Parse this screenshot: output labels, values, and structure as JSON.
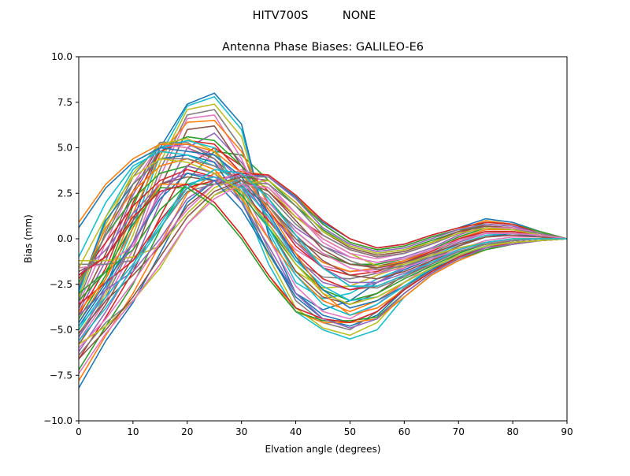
{
  "suptitle": {
    "left": "HITV700S",
    "right": "NONE"
  },
  "chart_data": {
    "type": "line",
    "title": "Antenna Phase Biases: GALILEO-E6",
    "xlabel": "Elvation angle (degrees)",
    "ylabel": "Bias (mm)",
    "xlim": [
      0,
      90
    ],
    "ylim": [
      -10,
      10
    ],
    "xticks": [
      0,
      10,
      20,
      30,
      40,
      50,
      60,
      70,
      80,
      90
    ],
    "xtick_labels": [
      "0",
      "10",
      "20",
      "30",
      "40",
      "50",
      "60",
      "70",
      "80",
      "90"
    ],
    "yticks": [
      -10,
      -7.5,
      -5,
      -2.5,
      0,
      2.5,
      5,
      7.5,
      10
    ],
    "ytick_labels": [
      "−10.0",
      "−7.5",
      "−5.0",
      "−2.5",
      "0.0",
      "2.5",
      "5.0",
      "7.5",
      "10.0"
    ],
    "grid": false,
    "x": [
      0,
      5,
      10,
      15,
      20,
      25,
      30,
      35,
      40,
      45,
      50,
      55,
      60,
      65,
      70,
      75,
      80,
      85,
      90
    ],
    "series_colors": [
      "#1f77b4",
      "#ff7f0e",
      "#2ca02c",
      "#d62728",
      "#9467bd",
      "#8c564b",
      "#e377c2",
      "#7f7f7f",
      "#bcbd22",
      "#17becf"
    ],
    "series": [
      {
        "values": [
          -8.2,
          -5.6,
          -3.5,
          -0.8,
          2.0,
          3.2,
          3.6,
          3.4,
          2.3,
          0.9,
          0.0,
          -0.5,
          -0.3,
          0.2,
          0.6,
          1.1,
          0.9,
          0.4,
          0.0
        ]
      },
      {
        "values": [
          -7.8,
          -5.3,
          -3.0,
          -0.3,
          2.5,
          3.6,
          3.7,
          3.5,
          2.4,
          0.8,
          -0.2,
          -0.6,
          -0.4,
          0.1,
          0.5,
          1.0,
          0.8,
          0.4,
          0.0
        ]
      },
      {
        "values": [
          -7.2,
          -4.8,
          -2.5,
          0.5,
          3.2,
          4.8,
          4.6,
          3.2,
          1.8,
          0.5,
          -0.4,
          -0.8,
          -0.6,
          -0.1,
          0.4,
          0.9,
          0.8,
          0.4,
          0.0
        ]
      },
      {
        "values": [
          -6.6,
          -4.3,
          -1.8,
          1.2,
          4.0,
          5.0,
          4.0,
          2.6,
          1.2,
          0.2,
          -0.6,
          -1.0,
          -0.8,
          -0.3,
          0.3,
          0.8,
          0.7,
          0.3,
          0.0
        ]
      },
      {
        "values": [
          -6.2,
          -4.0,
          -1.5,
          2.0,
          5.0,
          5.8,
          4.2,
          2.0,
          0.6,
          -0.4,
          -1.0,
          -1.3,
          -1.0,
          -0.5,
          0.2,
          0.7,
          0.6,
          0.3,
          0.0
        ]
      },
      {
        "values": [
          -5.8,
          -3.6,
          -1.0,
          2.8,
          6.0,
          6.2,
          4.0,
          1.4,
          0.0,
          -0.9,
          -1.4,
          -1.5,
          -1.2,
          -0.6,
          0.1,
          0.6,
          0.5,
          0.3,
          0.0
        ]
      },
      {
        "values": [
          -5.6,
          -3.4,
          -0.6,
          3.4,
          6.6,
          6.8,
          4.4,
          1.0,
          -0.6,
          -1.5,
          -1.8,
          -1.7,
          -1.3,
          -0.7,
          0.0,
          0.5,
          0.5,
          0.2,
          0.0
        ]
      },
      {
        "values": [
          -5.4,
          -3.2,
          -0.2,
          3.8,
          6.8,
          7.1,
          5.0,
          0.8,
          -1.2,
          -2.1,
          -2.2,
          -1.9,
          -1.4,
          -0.8,
          -0.1,
          0.4,
          0.4,
          0.2,
          0.0
        ]
      },
      {
        "values": [
          -5.2,
          -3.0,
          0.2,
          4.2,
          7.1,
          7.4,
          5.6,
          0.6,
          -1.8,
          -2.7,
          -2.6,
          -2.0,
          -1.5,
          -0.9,
          -0.2,
          0.3,
          0.4,
          0.2,
          0.0
        ]
      },
      {
        "values": [
          -5.0,
          -2.8,
          0.6,
          4.6,
          7.3,
          7.8,
          6.0,
          0.4,
          -2.4,
          -3.3,
          -3.0,
          -2.2,
          -1.6,
          -1.0,
          -0.3,
          0.2,
          0.3,
          0.2,
          0.0
        ]
      },
      {
        "values": [
          -4.8,
          -2.6,
          1.0,
          5.0,
          7.4,
          8.0,
          6.3,
          0.2,
          -3.0,
          -3.9,
          -3.4,
          -2.4,
          -1.7,
          -1.1,
          -0.4,
          0.1,
          0.3,
          0.1,
          0.0
        ]
      },
      {
        "values": [
          -4.6,
          -2.2,
          1.4,
          4.6,
          6.4,
          6.5,
          4.8,
          1.8,
          -0.2,
          -1.3,
          -1.8,
          -1.6,
          -1.2,
          -0.7,
          0.0,
          0.5,
          0.5,
          0.2,
          0.0
        ]
      },
      {
        "values": [
          -4.4,
          -2.0,
          1.8,
          5.0,
          5.6,
          5.4,
          4.0,
          2.2,
          0.4,
          -0.8,
          -1.4,
          -1.4,
          -1.1,
          -0.6,
          0.1,
          0.6,
          0.5,
          0.3,
          0.0
        ]
      },
      {
        "values": [
          -4.2,
          -1.6,
          2.0,
          4.8,
          5.4,
          5.2,
          3.6,
          1.6,
          -0.4,
          -1.6,
          -2.0,
          -1.8,
          -1.3,
          -0.7,
          0.0,
          0.4,
          0.4,
          0.2,
          0.0
        ]
      },
      {
        "values": [
          -4.0,
          -1.2,
          2.4,
          5.0,
          5.2,
          4.6,
          3.2,
          1.2,
          -1.0,
          -2.4,
          -2.8,
          -2.4,
          -1.6,
          -0.9,
          -0.2,
          0.3,
          0.3,
          0.2,
          0.0
        ]
      },
      {
        "values": [
          -3.8,
          -0.8,
          2.6,
          5.2,
          5.0,
          4.4,
          3.0,
          0.6,
          -1.8,
          -3.2,
          -3.6,
          -3.0,
          -2.0,
          -1.2,
          -0.4,
          0.1,
          0.2,
          0.1,
          0.0
        ]
      },
      {
        "values": [
          -3.6,
          -0.2,
          3.0,
          5.2,
          5.0,
          4.2,
          2.8,
          0.0,
          -2.6,
          -4.0,
          -4.4,
          -3.6,
          -2.4,
          -1.4,
          -0.6,
          -0.1,
          0.1,
          0.1,
          0.0
        ]
      },
      {
        "values": [
          -3.4,
          0.4,
          3.4,
          5.3,
          5.3,
          4.4,
          2.6,
          -0.6,
          -3.4,
          -4.6,
          -5.0,
          -4.0,
          -2.7,
          -1.7,
          -0.8,
          -0.2,
          0.0,
          0.0,
          0.0
        ]
      },
      {
        "values": [
          -3.2,
          0.8,
          3.6,
          5.2,
          5.5,
          4.8,
          2.4,
          -1.0,
          -3.8,
          -4.9,
          -5.3,
          -4.6,
          -3.0,
          -1.9,
          -1.0,
          -0.4,
          -0.1,
          0.0,
          0.0
        ]
      },
      {
        "values": [
          -3.0,
          1.2,
          3.8,
          5.0,
          5.4,
          5.0,
          2.2,
          -1.4,
          -4.0,
          -5.0,
          -5.5,
          -5.0,
          -3.2,
          -2.0,
          -1.2,
          -0.6,
          -0.3,
          -0.1,
          0.0
        ]
      },
      {
        "values": [
          -2.8,
          1.0,
          3.0,
          4.4,
          4.6,
          4.2,
          2.0,
          -0.8,
          -3.0,
          -4.2,
          -4.6,
          -4.0,
          -2.8,
          -1.8,
          -1.0,
          -0.4,
          -0.2,
          -0.1,
          0.0
        ]
      },
      {
        "values": [
          -2.6,
          0.6,
          2.6,
          4.0,
          4.4,
          3.8,
          2.2,
          0.0,
          -2.0,
          -3.4,
          -4.0,
          -3.4,
          -2.4,
          -1.6,
          -0.9,
          -0.4,
          -0.2,
          -0.1,
          0.0
        ]
      },
      {
        "values": [
          -2.4,
          0.2,
          2.2,
          3.6,
          4.0,
          3.6,
          2.4,
          0.6,
          -1.4,
          -2.8,
          -3.4,
          -3.0,
          -2.2,
          -1.5,
          -0.8,
          -0.3,
          -0.1,
          0.0,
          0.0
        ]
      },
      {
        "values": [
          -2.2,
          -0.2,
          1.8,
          3.2,
          3.8,
          3.4,
          2.6,
          1.0,
          -0.8,
          -2.2,
          -2.8,
          -2.6,
          -2.0,
          -1.4,
          -0.7,
          -0.3,
          -0.1,
          0.0,
          0.0
        ]
      },
      {
        "values": [
          -2.0,
          -0.6,
          1.4,
          3.0,
          3.6,
          3.4,
          2.8,
          1.4,
          -0.2,
          -1.6,
          -2.4,
          -2.4,
          -1.9,
          -1.3,
          -0.7,
          -0.3,
          -0.1,
          0.0,
          0.0
        ]
      },
      {
        "values": [
          -1.8,
          -1.0,
          1.0,
          3.0,
          3.4,
          3.2,
          2.9,
          1.8,
          0.2,
          -1.2,
          -2.0,
          -2.2,
          -1.8,
          -1.2,
          -0.6,
          -0.2,
          -0.1,
          0.0,
          0.0
        ]
      },
      {
        "values": [
          -1.6,
          -1.4,
          -0.4,
          2.6,
          3.0,
          3.0,
          3.0,
          2.0,
          0.4,
          -0.8,
          -1.6,
          -1.9,
          -1.6,
          -1.1,
          -0.6,
          -0.2,
          -0.1,
          0.0,
          0.0
        ]
      },
      {
        "values": [
          -1.4,
          -1.4,
          -1.2,
          0.6,
          2.6,
          3.0,
          3.2,
          2.4,
          0.8,
          -0.4,
          -1.2,
          -1.7,
          -1.5,
          -1.0,
          -0.5,
          -0.2,
          0.0,
          0.0,
          0.0
        ]
      },
      {
        "values": [
          -1.2,
          -1.2,
          -1.0,
          -0.4,
          1.4,
          2.8,
          3.4,
          2.8,
          1.2,
          0.0,
          -0.8,
          -1.5,
          -1.4,
          -0.9,
          -0.5,
          -0.2,
          0.0,
          0.0,
          0.0
        ]
      },
      {
        "values": [
          -1.0,
          2.0,
          4.0,
          4.8,
          4.6,
          4.0,
          3.0,
          1.2,
          -1.2,
          -2.6,
          -3.4,
          -3.2,
          -2.4,
          -1.6,
          -0.9,
          -0.4,
          -0.2,
          -0.1,
          0.0
        ]
      },
      {
        "values": [
          0.6,
          2.8,
          4.2,
          5.0,
          4.8,
          4.6,
          3.4,
          1.4,
          -1.0,
          -2.8,
          -3.8,
          -3.4,
          -2.6,
          -1.7,
          -1.0,
          -0.5,
          -0.2,
          -0.1,
          0.0
        ]
      },
      {
        "values": [
          0.9,
          3.0,
          4.4,
          5.2,
          5.2,
          4.8,
          3.6,
          1.6,
          -0.8,
          -3.0,
          -4.2,
          -3.8,
          -2.8,
          -1.8,
          -1.1,
          -0.5,
          -0.3,
          -0.1,
          0.0
        ]
      },
      {
        "values": [
          -3.0,
          -1.8,
          -0.6,
          1.6,
          3.0,
          3.0,
          3.4,
          3.4,
          2.2,
          0.8,
          -0.2,
          -0.6,
          -0.4,
          0.1,
          0.5,
          0.7,
          0.6,
          0.3,
          0.0
        ]
      },
      {
        "values": [
          -3.6,
          -2.4,
          -1.2,
          1.0,
          2.8,
          3.2,
          3.6,
          3.5,
          2.4,
          1.0,
          0.0,
          -0.5,
          -0.3,
          0.2,
          0.6,
          0.9,
          0.8,
          0.3,
          0.0
        ]
      },
      {
        "values": [
          -4.2,
          -2.8,
          -1.8,
          0.0,
          2.2,
          3.2,
          3.5,
          3.4,
          2.2,
          0.6,
          -0.3,
          -0.7,
          -0.5,
          0.0,
          0.5,
          0.8,
          0.7,
          0.3,
          0.0
        ]
      },
      {
        "values": [
          -5.2,
          -3.4,
          -2.0,
          -0.4,
          1.8,
          3.0,
          3.4,
          3.2,
          2.0,
          0.4,
          -0.5,
          -0.9,
          -0.7,
          -0.2,
          0.4,
          0.7,
          0.6,
          0.3,
          0.0
        ]
      },
      {
        "values": [
          -6.0,
          -4.4,
          -2.4,
          -0.2,
          1.6,
          3.0,
          3.8,
          3.0,
          1.4,
          0.0,
          -0.8,
          -1.1,
          -0.8,
          -0.3,
          0.3,
          0.6,
          0.6,
          0.3,
          0.0
        ]
      },
      {
        "values": [
          -6.4,
          -4.6,
          -3.4,
          -1.4,
          0.8,
          2.4,
          3.2,
          3.0,
          1.8,
          0.2,
          -0.6,
          -1.0,
          -0.8,
          -0.3,
          0.3,
          0.6,
          0.5,
          0.3,
          0.0
        ]
      },
      {
        "values": [
          -5.8,
          -4.8,
          -3.4,
          -1.6,
          0.8,
          2.4,
          3.0,
          3.2,
          2.0,
          0.4,
          -0.4,
          -0.8,
          -0.6,
          -0.2,
          0.3,
          0.6,
          0.5,
          0.2,
          0.0
        ]
      },
      {
        "values": [
          -4.8,
          -3.2,
          -1.4,
          0.8,
          3.0,
          3.4,
          2.8,
          0.6,
          -2.0,
          -3.6,
          -4.2,
          -3.6,
          -2.6,
          -1.6,
          -0.9,
          -0.4,
          -0.2,
          -0.1,
          0.0
        ]
      },
      {
        "values": [
          -4.6,
          -2.4,
          -0.2,
          2.2,
          3.6,
          3.2,
          1.6,
          -0.8,
          -3.2,
          -4.4,
          -4.8,
          -4.2,
          -2.8,
          -1.8,
          -1.0,
          -0.5,
          -0.2,
          -0.1,
          0.0
        ]
      },
      {
        "values": [
          -4.0,
          -2.2,
          0.6,
          3.0,
          3.0,
          2.0,
          0.2,
          -2.0,
          -4.0,
          -4.6,
          -4.6,
          -4.4,
          -3.2,
          -2.0,
          -1.2,
          -0.6,
          -0.3,
          -0.1,
          0.0
        ]
      },
      {
        "values": [
          -3.4,
          -1.8,
          0.8,
          2.8,
          2.8,
          1.8,
          0.0,
          -2.2,
          -4.0,
          -4.5,
          -4.5,
          -4.3,
          -3.0,
          -1.9,
          -1.1,
          -0.6,
          -0.3,
          -0.1,
          0.0
        ]
      },
      {
        "values": [
          -2.0,
          -1.0,
          1.2,
          2.6,
          3.0,
          2.0,
          0.2,
          -2.0,
          -3.8,
          -4.4,
          -4.6,
          -4.0,
          -2.8,
          -1.8,
          -1.0,
          -0.5,
          -0.2,
          -0.1,
          0.0
        ]
      },
      {
        "values": [
          -5.4,
          -2.8,
          -0.2,
          2.4,
          4.0,
          3.6,
          2.0,
          -0.4,
          -3.0,
          -4.4,
          -4.9,
          -4.4,
          -3.0,
          -1.9,
          -1.1,
          -0.5,
          -0.3,
          -0.1,
          0.0
        ]
      },
      {
        "values": [
          -6.6,
          -5.0,
          -3.2,
          -1.0,
          1.2,
          2.6,
          3.2,
          2.6,
          1.0,
          -0.6,
          -1.4,
          -1.6,
          -1.3,
          -0.8,
          -0.3,
          0.1,
          0.2,
          0.1,
          0.0
        ]
      },
      {
        "values": [
          -7.4,
          -5.2,
          -3.4,
          -1.4,
          0.8,
          2.2,
          3.0,
          2.8,
          1.4,
          -0.2,
          -1.0,
          -1.3,
          -1.1,
          -0.6,
          -0.1,
          0.3,
          0.3,
          0.2,
          0.0
        ]
      },
      {
        "values": [
          -2.6,
          0.2,
          3.0,
          4.4,
          4.4,
          4.0,
          3.2,
          1.8,
          0.0,
          -1.6,
          -2.6,
          -2.7,
          -2.1,
          -1.4,
          -0.7,
          -0.3,
          -0.1,
          0.0,
          0.0
        ]
      },
      {
        "values": [
          -1.6,
          1.2,
          3.4,
          4.4,
          4.2,
          3.6,
          2.6,
          0.8,
          -1.4,
          -3.0,
          -3.6,
          -3.2,
          -2.4,
          -1.6,
          -0.9,
          -0.4,
          -0.2,
          -0.1,
          0.0
        ]
      },
      {
        "values": [
          -5.6,
          -3.8,
          -1.6,
          0.6,
          2.8,
          3.8,
          3.6,
          2.2,
          0.2,
          -1.6,
          -2.6,
          -2.6,
          -2.0,
          -1.3,
          -0.6,
          -0.2,
          0.0,
          0.0,
          0.0
        ]
      }
    ]
  }
}
